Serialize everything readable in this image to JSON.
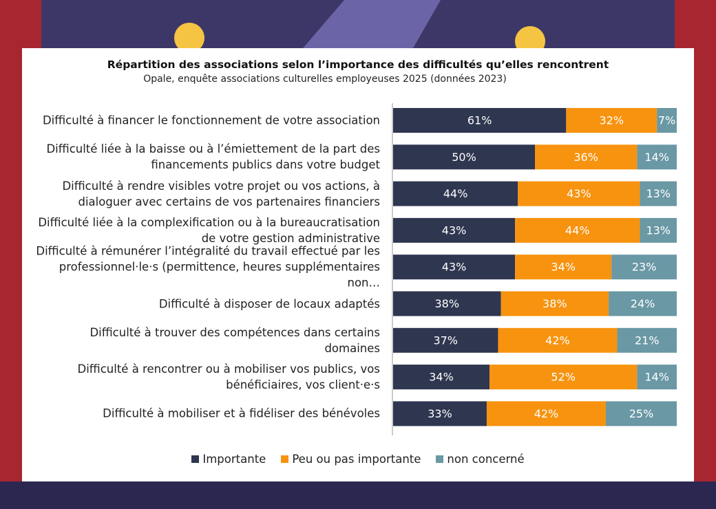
{
  "chart_data": {
    "type": "stacked-bar-horizontal",
    "title": "Répartition des associations selon l’importance des difficultés qu’elles rencontrent",
    "subtitle": "Opale, enquête associations culturelles employeuses 2025 (données 2023)",
    "categories": [
      "Difficulté à financer le fonctionnement de votre association",
      "Difficulté liée à la baisse ou à l’émiettement de la part des financements publics dans votre budget",
      "Difficulté à rendre visibles votre projet ou vos actions, à dialoguer avec certains de vos partenaires financiers",
      "Difficulté liée à la complexification ou à la bureaucratisation de votre gestion administrative",
      "Difficulté à rémunérer l’intégralité du travail effectué par les professionnel·le·s (permittence, heures supplémentaires non…",
      "Difficulté à disposer de locaux adaptés",
      "Difficulté à trouver des compétences dans certains domaines",
      "Difficulté à rencontrer ou à mobiliser vos publics, vos bénéficiaires, vos client·e·s",
      "Difficulté à mobiliser et à fidéliser des bénévoles"
    ],
    "series": [
      {
        "name": "Importante",
        "color": "#2f3650",
        "values": [
          61,
          50,
          44,
          43,
          43,
          38,
          37,
          34,
          33
        ],
        "value_labels": [
          "61%",
          "50%",
          "44%",
          "43%",
          "43%",
          "38%",
          "37%",
          "34%",
          "33%"
        ]
      },
      {
        "name": "Peu ou pas importante",
        "color": "#f7930f",
        "values": [
          32,
          36,
          43,
          44,
          34,
          38,
          42,
          52,
          42
        ],
        "value_labels": [
          "32%",
          "36%",
          "43%",
          "44%",
          "34%",
          "38%",
          "42%",
          "52%",
          "42%"
        ]
      },
      {
        "name": "non concerné",
        "color": "#6a98a5",
        "values": [
          7,
          14,
          13,
          13,
          23,
          24,
          21,
          14,
          25
        ],
        "value_labels": [
          "7%",
          "14%",
          "13%",
          "13%",
          "23%",
          "24%",
          "21%",
          "14%",
          "25%"
        ]
      }
    ],
    "legend": "bottom"
  }
}
